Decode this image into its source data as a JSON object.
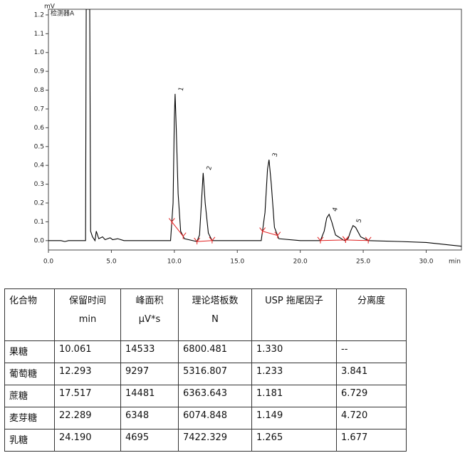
{
  "chart_data": {
    "type": "line",
    "y_unit": "mV",
    "detector": "检测器A",
    "x_unit": "min",
    "x": [
      0,
      1.0,
      1.3,
      1.6,
      2.5,
      2.95,
      3.0,
      3.28,
      3.35,
      3.5,
      3.7,
      3.8,
      3.9,
      4.0,
      4.3,
      4.5,
      4.9,
      5.1,
      5.5,
      6.0,
      8.0,
      9.7,
      9.9,
      10.0,
      10.06,
      10.15,
      10.3,
      10.5,
      10.8,
      11.8,
      12.0,
      12.15,
      12.29,
      12.45,
      12.7,
      13.0,
      15.0,
      16.9,
      17.2,
      17.4,
      17.52,
      17.7,
      17.95,
      18.3,
      20.0,
      21.6,
      21.9,
      22.1,
      22.29,
      22.5,
      22.8,
      23.5,
      23.8,
      24.0,
      24.19,
      24.4,
      24.8,
      25.4,
      28.0,
      30.0,
      32.8
    ],
    "series": [
      {
        "name": "检测器A",
        "color": "#000000",
        "values": [
          0.0,
          0.0,
          -0.005,
          0.0,
          0.0,
          0.0,
          1.23,
          1.23,
          0.05,
          0.02,
          0.0,
          0.05,
          0.03,
          0.01,
          0.02,
          0.005,
          0.015,
          0.005,
          0.01,
          0.0,
          0.0,
          0.0,
          0.2,
          0.65,
          0.78,
          0.6,
          0.25,
          0.05,
          0.01,
          -0.005,
          0.03,
          0.2,
          0.36,
          0.2,
          0.04,
          0.0,
          0.0,
          0.0,
          0.15,
          0.38,
          0.43,
          0.3,
          0.07,
          0.01,
          0.0,
          0.0,
          0.05,
          0.12,
          0.14,
          0.1,
          0.03,
          0.0,
          0.01,
          0.05,
          0.08,
          0.07,
          0.02,
          0.0,
          -0.005,
          -0.01,
          -0.03
        ]
      }
    ],
    "peak_labels": [
      "1",
      "2",
      "3",
      "4",
      "5"
    ],
    "integration_marks": [
      [
        9.8,
        10.7
      ],
      [
        11.8,
        13.0
      ],
      [
        17.0,
        18.2
      ],
      [
        21.6,
        23.6
      ],
      [
        23.6,
        25.4
      ]
    ],
    "integration_color": "#e02020",
    "xlim": [
      0,
      32.8
    ],
    "ylim": [
      -0.05,
      1.23
    ],
    "xticks": [
      {
        "value": 0,
        "label": "0.0"
      },
      {
        "value": 5,
        "label": "5.0"
      },
      {
        "value": 10,
        "label": "10.0"
      },
      {
        "value": 15,
        "label": "15.0"
      },
      {
        "value": 20,
        "label": "20.0"
      },
      {
        "value": 25,
        "label": "25.0"
      },
      {
        "value": 30,
        "label": "30.0"
      }
    ],
    "yticks": [
      {
        "value": 0,
        "label": "0.0"
      },
      0.1,
      0.2,
      0.3,
      0.4,
      0.5,
      0.6,
      0.7,
      0.8,
      0.9,
      {
        "value": 1,
        "label": "1.0"
      },
      1.1,
      1.2
    ]
  },
  "table": {
    "header": [
      [
        "化合物"
      ],
      [
        "保留时间",
        "min"
      ],
      [
        "峰面积",
        "μV*s"
      ],
      [
        "理论塔板数",
        "N"
      ],
      [
        "USP 拖尾因子"
      ],
      [
        "分离度"
      ]
    ],
    "rows": [
      [
        "果糖",
        "10.061",
        "14533",
        "6800.481",
        "1.330",
        "--"
      ],
      [
        "葡萄糖",
        "12.293",
        "9297",
        "5316.807",
        "1.233",
        "3.841"
      ],
      [
        "蔗糖",
        "17.517",
        "14481",
        "6363.643",
        "1.181",
        "6.729"
      ],
      [
        "麦芽糖",
        "22.289",
        "6348",
        "6074.848",
        "1.149",
        "4.720"
      ],
      [
        "乳糖",
        "24.190",
        "4695",
        "7422.329",
        "1.265",
        "1.677"
      ]
    ]
  }
}
